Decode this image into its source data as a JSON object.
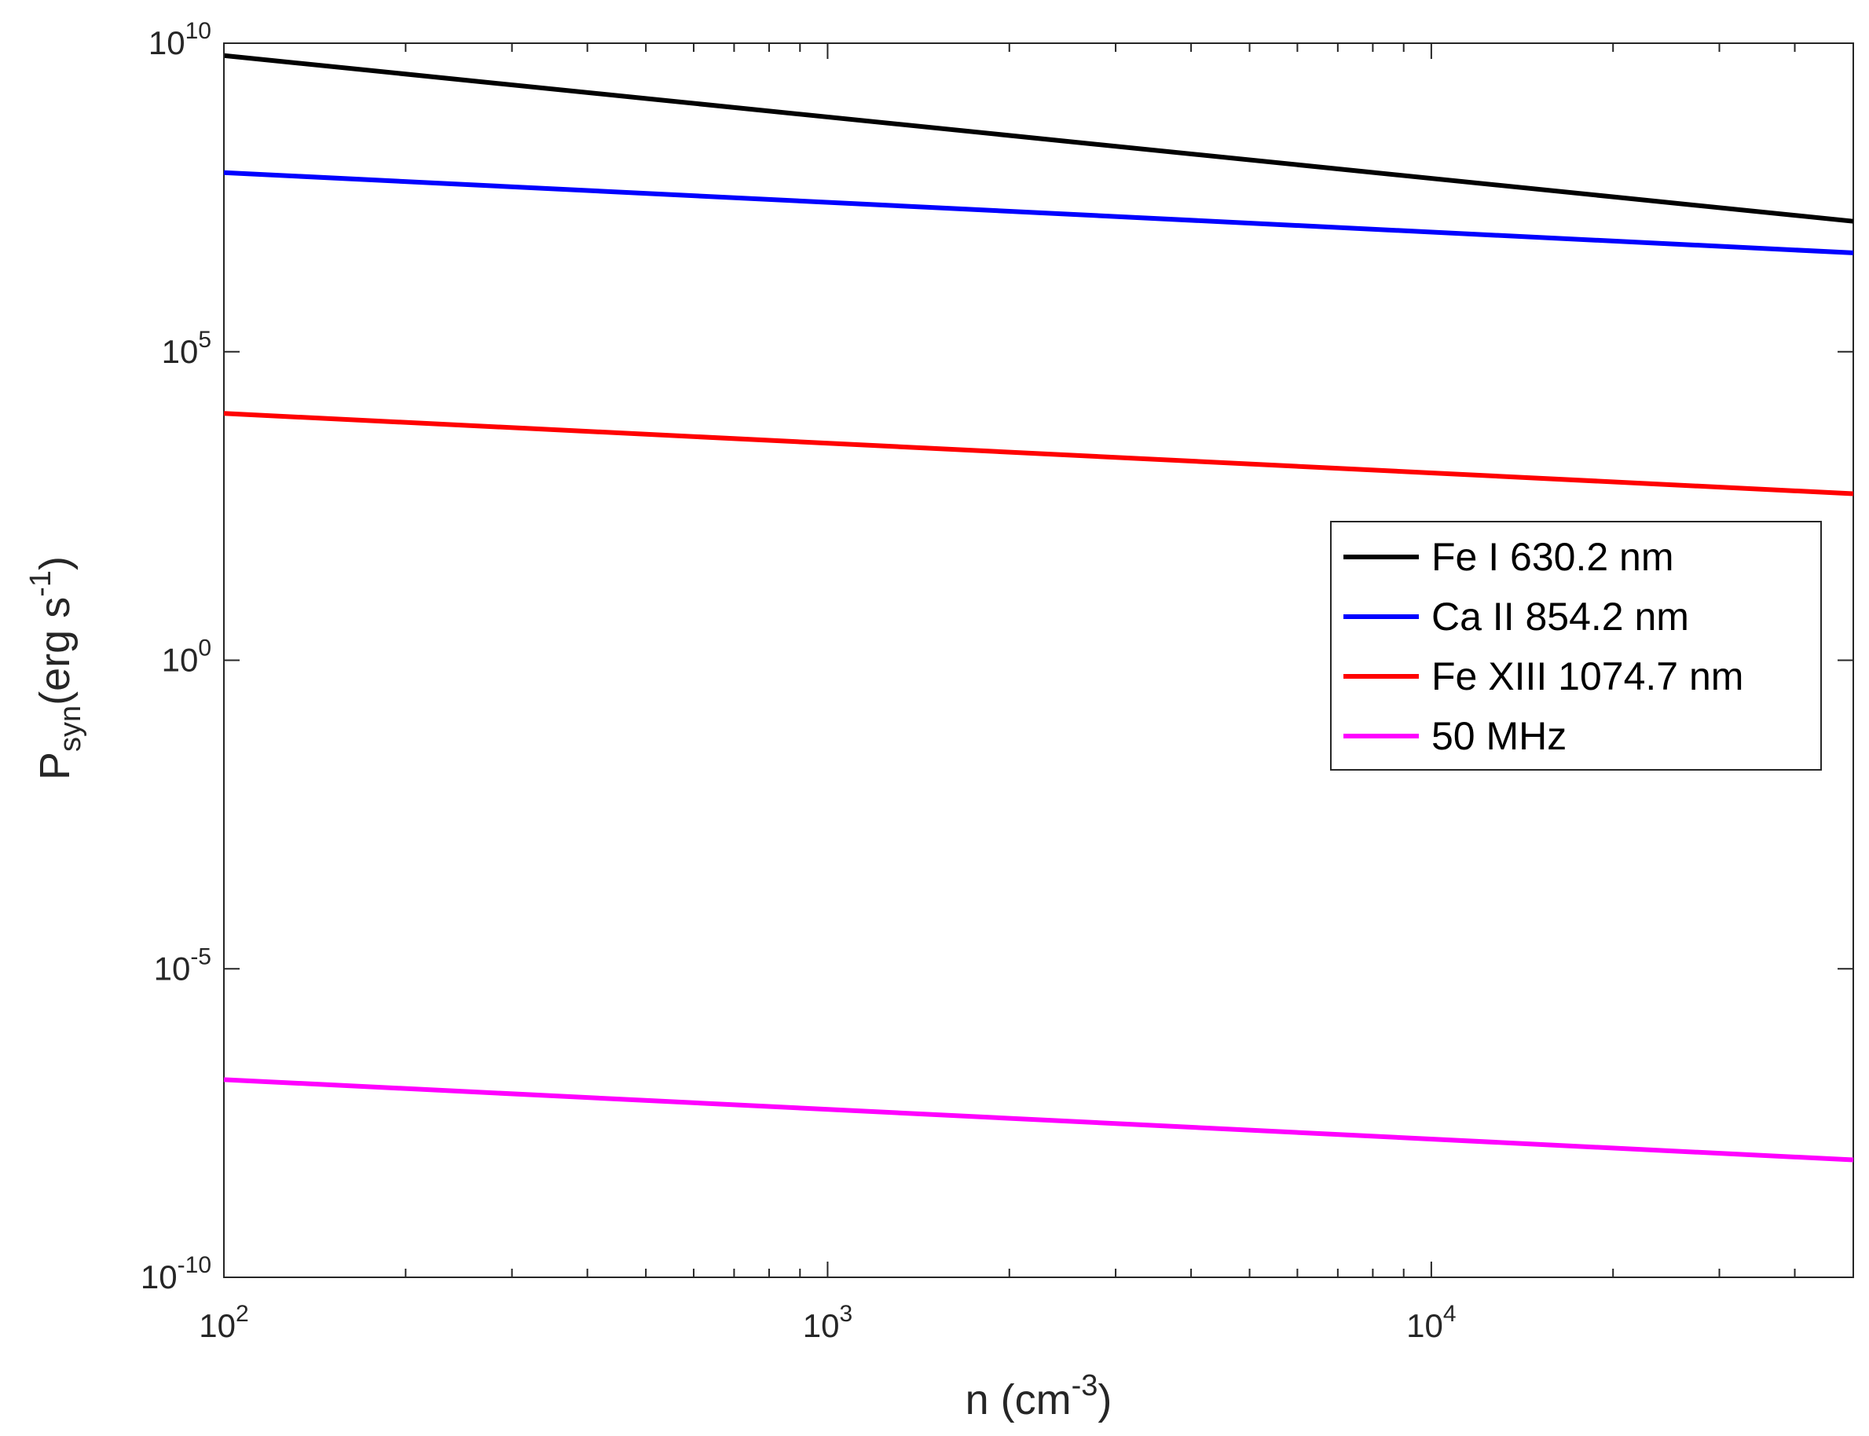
{
  "chart_data": {
    "type": "line",
    "xscale": "log",
    "yscale": "log",
    "xlim": [
      100,
      50000
    ],
    "ylim": [
      1e-10,
      10000000000
    ],
    "xlabel": {
      "base": "n (cm",
      "sup": "-3",
      "tail": ")"
    },
    "ylabel": {
      "base": "P",
      "sub": "syn",
      "mid": "(erg s",
      "sup": "-1",
      "tail": ")"
    },
    "x_ticks": [
      {
        "value": 100,
        "base": "10",
        "exp": "2"
      },
      {
        "value": 1000,
        "base": "10",
        "exp": "3"
      },
      {
        "value": 10000,
        "base": "10",
        "exp": "4"
      }
    ],
    "y_ticks": [
      {
        "value": 1e-10,
        "base": "10",
        "exp": "-10"
      },
      {
        "value": 1e-05,
        "base": "10",
        "exp": "-5"
      },
      {
        "value": 1,
        "base": "10",
        "exp": "0"
      },
      {
        "value": 100000,
        "base": "10",
        "exp": "5"
      },
      {
        "value": 10000000000,
        "base": "10",
        "exp": "10"
      }
    ],
    "grid": false,
    "legend_position": "right",
    "series": [
      {
        "name": "Fe I 630.2 nm",
        "color": "#000000",
        "points": [
          [
            100,
            6300000000
          ],
          [
            50000,
            13000000
          ]
        ]
      },
      {
        "name": "Ca II 854.2 nm",
        "color": "#0000ff",
        "points": [
          [
            100,
            80000000
          ],
          [
            50000,
            4000000
          ]
        ]
      },
      {
        "name": "Fe XIII 1074.7 nm",
        "color": "#ff0000",
        "points": [
          [
            100,
            10000
          ],
          [
            50000,
            500
          ]
        ]
      },
      {
        "name": "50 MHz",
        "color": "#ff00ff",
        "points": [
          [
            100,
            1.6e-07
          ],
          [
            50000,
            8e-09
          ]
        ]
      }
    ]
  }
}
